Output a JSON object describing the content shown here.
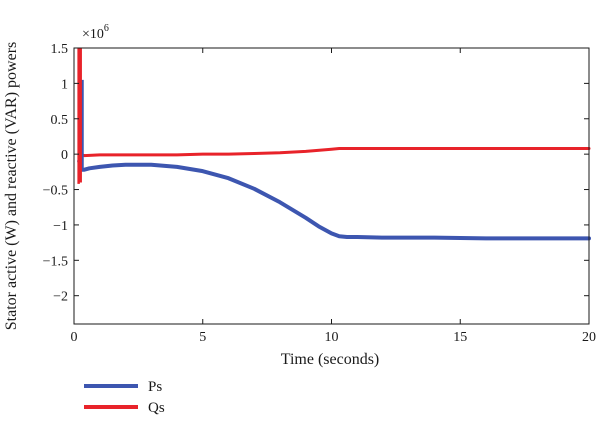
{
  "chart_data": {
    "type": "line",
    "title": "",
    "xlabel": "Time (seconds)",
    "ylabel": "Stator active (W) and reactive (VAR) powers",
    "y_multiplier_label": "×10",
    "y_multiplier_exponent": "6",
    "xlim": [
      0,
      20
    ],
    "ylim": [
      -2.4,
      1.5
    ],
    "grid": false,
    "legend_position": "bottom-left-outside",
    "x_ticks": [
      0,
      5,
      10,
      15,
      20
    ],
    "x_tick_labels": [
      "0",
      "5",
      "10",
      "15",
      "20"
    ],
    "y_ticks": [
      1.5,
      1,
      0.5,
      0,
      -0.5,
      -1,
      -1.5,
      -2
    ],
    "y_tick_labels": [
      "1.5",
      "1",
      "0.5",
      "0",
      "−0.5",
      "−1",
      "−1.5",
      "−2"
    ],
    "series": [
      {
        "name": "Ps",
        "color": "#3d56b0",
        "x": [
          0.2,
          0.3,
          0.4,
          0.6,
          1,
          1.5,
          2,
          3,
          4,
          5,
          6,
          7,
          8,
          9,
          9.5,
          10,
          10.3,
          10.6,
          11,
          12,
          14,
          16,
          18,
          20
        ],
        "values": [
          -0.1,
          -0.22,
          -0.22,
          -0.2,
          -0.18,
          -0.16,
          -0.15,
          -0.15,
          -0.18,
          -0.24,
          -0.34,
          -0.49,
          -0.68,
          -0.9,
          -1.02,
          -1.12,
          -1.16,
          -1.17,
          -1.17,
          -1.18,
          -1.18,
          -1.19,
          -1.19,
          -1.19
        ]
      },
      {
        "name": "Qs",
        "color": "#e8232a",
        "x": [
          0.2,
          0.4,
          1,
          2,
          3,
          4,
          5,
          6,
          7,
          8,
          9,
          10,
          10.3,
          11,
          12,
          14,
          16,
          18,
          20
        ],
        "values": [
          0.0,
          -0.02,
          -0.01,
          -0.01,
          -0.01,
          -0.01,
          0.0,
          0.0,
          0.01,
          0.02,
          0.04,
          0.07,
          0.08,
          0.08,
          0.08,
          0.08,
          0.08,
          0.08,
          0.08
        ]
      }
    ],
    "transients": [
      {
        "series": "Ps",
        "x": 0.22,
        "y_min": -0.4,
        "y_max": 1.5
      },
      {
        "series": "Ps",
        "x": 0.33,
        "y_min": -0.2,
        "y_max": 1.05
      },
      {
        "series": "Qs",
        "x": 0.18,
        "y_min": -0.42,
        "y_max": 1.5
      },
      {
        "series": "Qs",
        "x": 0.26,
        "y_min": -0.4,
        "y_max": 1.5
      }
    ]
  }
}
